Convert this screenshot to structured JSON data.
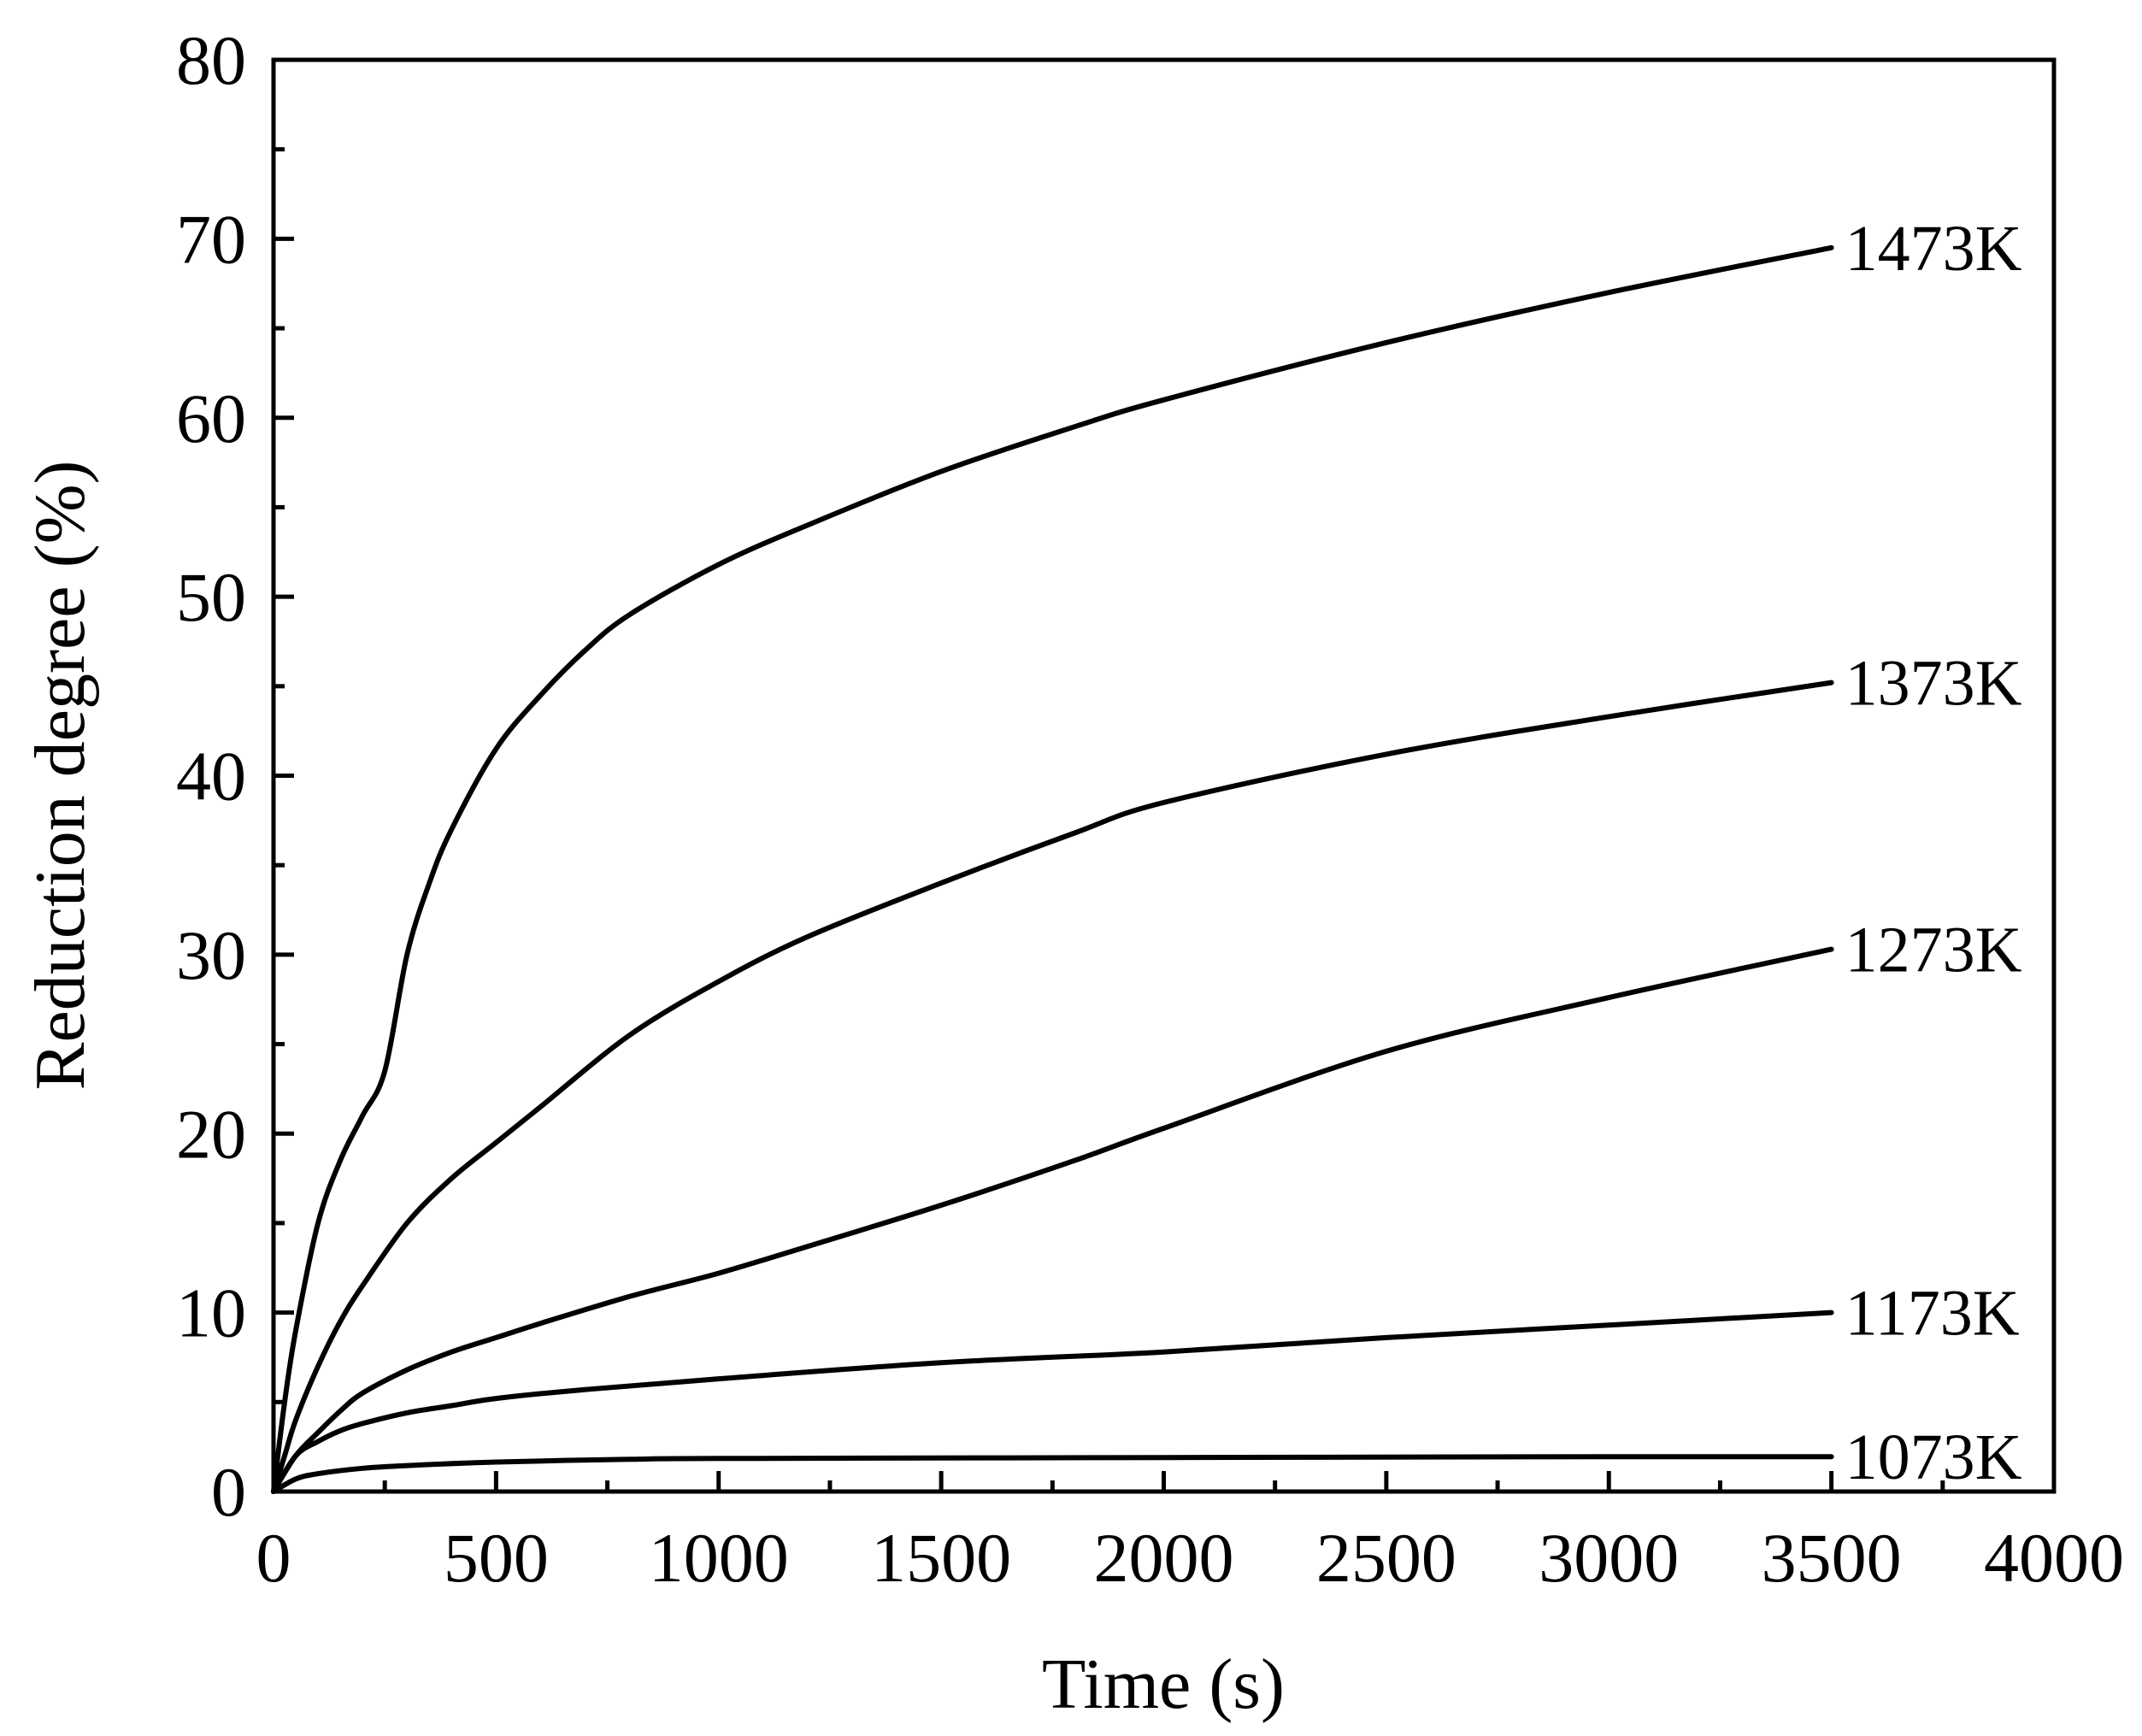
{
  "chart_data": {
    "type": "line",
    "title": "",
    "xlabel": "Time (s)",
    "ylabel": "Reduction degree (%)",
    "xlim": [
      0,
      4000
    ],
    "ylim": [
      0,
      80
    ],
    "x_ticks": [
      "0",
      "500",
      "1000",
      "1500",
      "2000",
      "2500",
      "3000",
      "3500",
      "4000"
    ],
    "y_ticks": [
      "0",
      "10",
      "20",
      "30",
      "40",
      "50",
      "60",
      "70",
      "80"
    ],
    "grid": false,
    "legend": "none",
    "series": [
      {
        "name": "1473K",
        "x": [
          0,
          25,
          50,
          100,
          150,
          200,
          250,
          300,
          350,
          400,
          500,
          600,
          700,
          800,
          1000,
          1200,
          1500,
          1800,
          2000,
          2500,
          3000,
          3500
        ],
        "y": [
          0,
          5,
          9,
          15,
          18.5,
          21,
          23.5,
          30,
          34,
          37,
          41.5,
          44.5,
          47,
          49,
          51.8,
          54,
          57,
          59.5,
          61,
          64.2,
          67,
          69.5
        ]
      },
      {
        "name": "1373K",
        "x": [
          0,
          25,
          50,
          100,
          150,
          200,
          300,
          400,
          500,
          600,
          800,
          1000,
          1200,
          1500,
          1800,
          2000,
          2500,
          3000,
          3500
        ],
        "y": [
          0,
          2,
          4,
          7,
          9.5,
          11.5,
          15,
          17.5,
          19.5,
          21.5,
          25.5,
          28.5,
          31,
          34,
          36.8,
          38.5,
          41.2,
          43.3,
          45.2
        ]
      },
      {
        "name": "1273K",
        "x": [
          0,
          50,
          100,
          150,
          200,
          300,
          400,
          500,
          600,
          800,
          1000,
          1200,
          1500,
          1800,
          2000,
          2500,
          3000,
          3500
        ],
        "y": [
          0,
          2,
          3.3,
          4.5,
          5.5,
          6.8,
          7.8,
          8.6,
          9.4,
          10.9,
          12.2,
          13.7,
          16,
          18.5,
          20.3,
          24.6,
          27.6,
          30.3
        ]
      },
      {
        "name": "1173K",
        "x": [
          0,
          50,
          100,
          150,
          200,
          300,
          400,
          500,
          700,
          1000,
          1500,
          2000,
          2500,
          3000,
          3500
        ],
        "y": [
          0,
          2,
          2.8,
          3.4,
          3.8,
          4.4,
          4.8,
          5.2,
          5.7,
          6.3,
          7.2,
          7.8,
          8.6,
          9.3,
          10
        ]
      },
      {
        "name": "1073K",
        "x": [
          0,
          50,
          100,
          200,
          300,
          500,
          800,
          1000,
          2000,
          3000,
          3500
        ],
        "y": [
          0,
          0.7,
          1,
          1.3,
          1.45,
          1.65,
          1.8,
          1.85,
          1.9,
          1.95,
          1.95
        ]
      }
    ]
  }
}
